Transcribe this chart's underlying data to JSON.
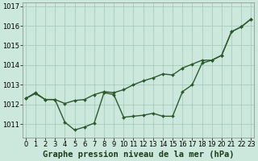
{
  "title": "Graphe pression niveau de la mer (hPa)",
  "background_color": "#cce8dc",
  "grid_color": "#a8ccbc",
  "line_color": "#2d5a2d",
  "marker_color": "#2d5a2d",
  "xlim_min": -0.3,
  "xlim_max": 23.3,
  "ylim_min": 1010.3,
  "ylim_max": 1017.2,
  "yticks": [
    1011,
    1012,
    1013,
    1014,
    1015,
    1016,
    1017
  ],
  "xticks": [
    0,
    1,
    2,
    3,
    4,
    5,
    6,
    7,
    8,
    9,
    10,
    11,
    12,
    13,
    14,
    15,
    16,
    17,
    18,
    19,
    20,
    21,
    22,
    23
  ],
  "series1": [
    1012.3,
    1012.6,
    1012.25,
    1012.25,
    1011.1,
    1010.7,
    1010.85,
    1011.05,
    1012.6,
    1012.5,
    1011.35,
    1011.4,
    1011.45,
    1011.55,
    1011.4,
    1011.4,
    1012.65,
    1013.0,
    1014.1,
    1014.25,
    1014.5,
    1015.7,
    1015.95,
    1016.35
  ],
  "series2": [
    1012.3,
    1012.55,
    1012.25,
    1012.25,
    1012.05,
    1012.2,
    1012.25,
    1012.5,
    1012.65,
    1012.6,
    1012.75,
    1013.0,
    1013.2,
    1013.35,
    1013.55,
    1013.5,
    1013.85,
    1014.05,
    1014.25,
    1014.25,
    1014.5,
    1015.7,
    1015.95,
    1016.35
  ],
  "tick_fontsize": 6.0,
  "xlabel_fontsize": 7.5,
  "linewidth": 1.0,
  "markersize": 2.0
}
